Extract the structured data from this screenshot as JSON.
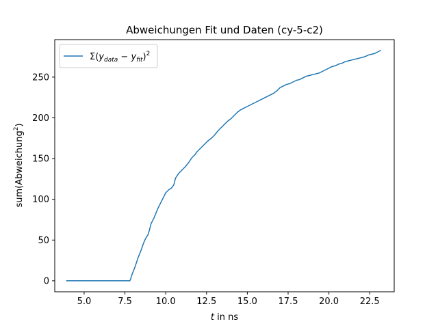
{
  "chart_data": {
    "type": "line",
    "title": "Abweichungen Fit und Daten (cy-5-c2)",
    "xlabel": {
      "italic": "t",
      "rest": " in ns"
    },
    "ylabel": {
      "base": "sum(Abweichung",
      "sup": "2",
      "close": ")"
    },
    "xlim": [
      3.2,
      24.0
    ],
    "ylim": [
      -13.5,
      296
    ],
    "xticks": [
      5.0,
      7.5,
      10.0,
      12.5,
      15.0,
      17.5,
      20.0,
      22.5
    ],
    "xtick_labels": [
      "5.0",
      "7.5",
      "10.0",
      "12.5",
      "15.0",
      "17.5",
      "20.0",
      "22.5"
    ],
    "yticks": [
      0,
      50,
      100,
      150,
      200,
      250
    ],
    "ytick_labels": [
      "0",
      "50",
      "100",
      "150",
      "200",
      "250"
    ],
    "grid": false,
    "legend_position": "upper-left",
    "series": [
      {
        "name": {
          "sigma": "Σ(",
          "y1": "y",
          "sub1": "data",
          "minus": " − ",
          "y2": "y",
          "sub2": "fit",
          "close": ")",
          "sup": "2"
        },
        "color": "#1f77b4",
        "x": [
          3.9,
          7.8,
          7.85,
          7.9,
          8.0,
          8.1,
          8.2,
          8.3,
          8.4,
          8.5,
          8.6,
          8.7,
          8.8,
          8.9,
          9.0,
          9.1,
          9.2,
          9.3,
          9.4,
          9.5,
          9.6,
          9.7,
          9.8,
          9.9,
          10.0,
          10.1,
          10.2,
          10.3,
          10.4,
          10.5,
          10.6,
          10.7,
          10.8,
          10.9,
          11.0,
          11.2,
          11.4,
          11.6,
          11.8,
          11.9,
          12.0,
          12.2,
          12.4,
          12.6,
          12.8,
          13.0,
          13.2,
          13.4,
          13.6,
          13.8,
          14.0,
          14.2,
          14.4,
          14.6,
          14.8,
          15.0,
          15.2,
          15.4,
          15.6,
          15.8,
          16.0,
          16.2,
          16.4,
          16.6,
          16.8,
          17.0,
          17.2,
          17.4,
          17.6,
          17.8,
          18.0,
          18.2,
          18.4,
          18.6,
          18.8,
          19.0,
          19.2,
          19.4,
          19.6,
          19.8,
          20.0,
          20.2,
          20.4,
          20.6,
          20.8,
          21.0,
          21.2,
          21.4,
          21.6,
          21.8,
          22.0,
          22.2,
          22.4,
          22.6,
          22.8,
          23.0,
          23.2
        ],
        "y": [
          0,
          0,
          2,
          6,
          11,
          16,
          22,
          28,
          33,
          38,
          44,
          49,
          53,
          56,
          62,
          70,
          74,
          78,
          83,
          88,
          92,
          96,
          100,
          104,
          108,
          110,
          112,
          113,
          115,
          118,
          126,
          129,
          132,
          134,
          136,
          140,
          145,
          151,
          155,
          158,
          160,
          164,
          168,
          172,
          175,
          179,
          184,
          188,
          192,
          196,
          199,
          203,
          207,
          210,
          212,
          214,
          216,
          218,
          220,
          222,
          224,
          226,
          228,
          230,
          233,
          237,
          239,
          241,
          242,
          244,
          246,
          247,
          249,
          251,
          252,
          253,
          254,
          255,
          257,
          259,
          261,
          263,
          264,
          266,
          267,
          269,
          270,
          271,
          272,
          273,
          274,
          275,
          277,
          278,
          279,
          281,
          283
        ]
      }
    ]
  }
}
